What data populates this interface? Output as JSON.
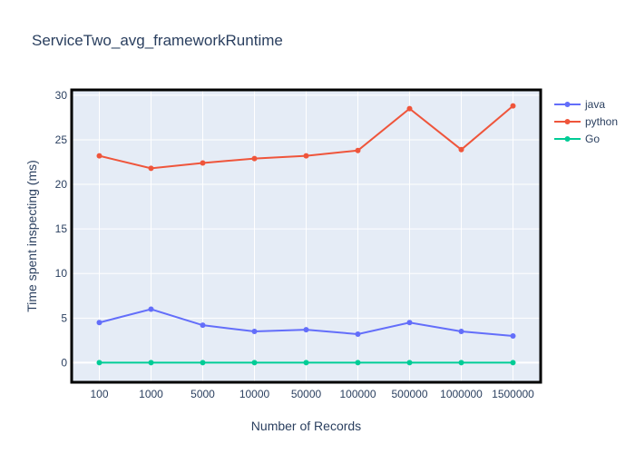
{
  "chart_data": {
    "type": "line",
    "title": "ServiceTwo_avg_frameworkRuntime",
    "xlabel": "Number of Records",
    "ylabel": "Time spent inspecting (ms)",
    "categories": [
      "100",
      "1000",
      "5000",
      "10000",
      "50000",
      "100000",
      "500000",
      "1000000",
      "1500000"
    ],
    "ylim": [
      -2.2,
      30.6
    ],
    "yticks": [
      0,
      5,
      10,
      15,
      20,
      25,
      30
    ],
    "grid": true,
    "legend_position": "top-right",
    "series": [
      {
        "name": "java",
        "color": "#636efa",
        "values": [
          4.5,
          6.0,
          4.2,
          3.5,
          3.7,
          3.2,
          4.5,
          3.5,
          3.0
        ]
      },
      {
        "name": "python",
        "color": "#ef553b",
        "values": [
          23.2,
          21.8,
          22.4,
          22.9,
          23.2,
          23.8,
          28.5,
          23.9,
          28.8
        ]
      },
      {
        "name": "Go",
        "color": "#00cc96",
        "values": [
          0,
          0,
          0,
          0,
          0,
          0,
          0,
          0,
          0
        ]
      }
    ]
  }
}
